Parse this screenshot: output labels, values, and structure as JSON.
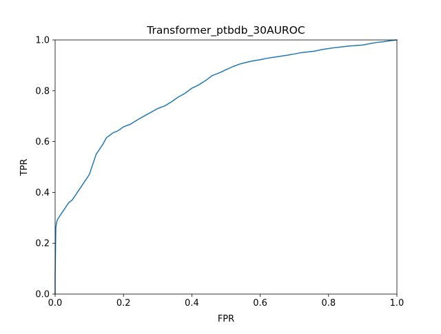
{
  "chart_data": {
    "type": "line",
    "title": "Transformer_ptbdb_30AUROC",
    "xlabel": "FPR",
    "ylabel": "TPR",
    "xlim": [
      0.0,
      1.0
    ],
    "ylim": [
      0.0,
      1.0
    ],
    "xticks": [
      0.0,
      0.2,
      0.4,
      0.6,
      0.8,
      1.0
    ],
    "yticks": [
      0.0,
      0.2,
      0.4,
      0.6,
      0.8,
      1.0
    ],
    "xtick_labels": [
      "0.0",
      "0.2",
      "0.4",
      "0.6",
      "0.8",
      "1.0"
    ],
    "ytick_labels": [
      "0.0",
      "0.2",
      "0.4",
      "0.6",
      "0.8",
      "1.0"
    ],
    "grid": false,
    "legend": false,
    "series": [
      {
        "color": "#1f77b4",
        "x": [
          0.0,
          0.0,
          0.002,
          0.004,
          0.006,
          0.01,
          0.015,
          0.02,
          0.03,
          0.04,
          0.05,
          0.06,
          0.07,
          0.08,
          0.09,
          0.1,
          0.105,
          0.11,
          0.115,
          0.12,
          0.13,
          0.14,
          0.15,
          0.16,
          0.17,
          0.18,
          0.19,
          0.2,
          0.22,
          0.24,
          0.26,
          0.28,
          0.3,
          0.32,
          0.34,
          0.36,
          0.38,
          0.4,
          0.42,
          0.44,
          0.46,
          0.48,
          0.5,
          0.52,
          0.54,
          0.56,
          0.58,
          0.6,
          0.62,
          0.64,
          0.66,
          0.68,
          0.7,
          0.72,
          0.74,
          0.76,
          0.78,
          0.8,
          0.82,
          0.84,
          0.86,
          0.88,
          0.9,
          0.92,
          0.94,
          0.96,
          0.98,
          1.0
        ],
        "y": [
          0.0,
          0.07,
          0.26,
          0.28,
          0.29,
          0.3,
          0.31,
          0.32,
          0.34,
          0.36,
          0.37,
          0.39,
          0.41,
          0.43,
          0.45,
          0.47,
          0.49,
          0.51,
          0.53,
          0.55,
          0.57,
          0.59,
          0.615,
          0.625,
          0.635,
          0.64,
          0.648,
          0.658,
          0.668,
          0.685,
          0.7,
          0.715,
          0.73,
          0.74,
          0.756,
          0.775,
          0.79,
          0.81,
          0.823,
          0.84,
          0.86,
          0.87,
          0.883,
          0.895,
          0.905,
          0.912,
          0.918,
          0.922,
          0.928,
          0.932,
          0.936,
          0.94,
          0.945,
          0.95,
          0.953,
          0.956,
          0.962,
          0.966,
          0.97,
          0.973,
          0.976,
          0.978,
          0.98,
          0.985,
          0.99,
          0.993,
          0.997,
          1.0
        ]
      }
    ]
  }
}
